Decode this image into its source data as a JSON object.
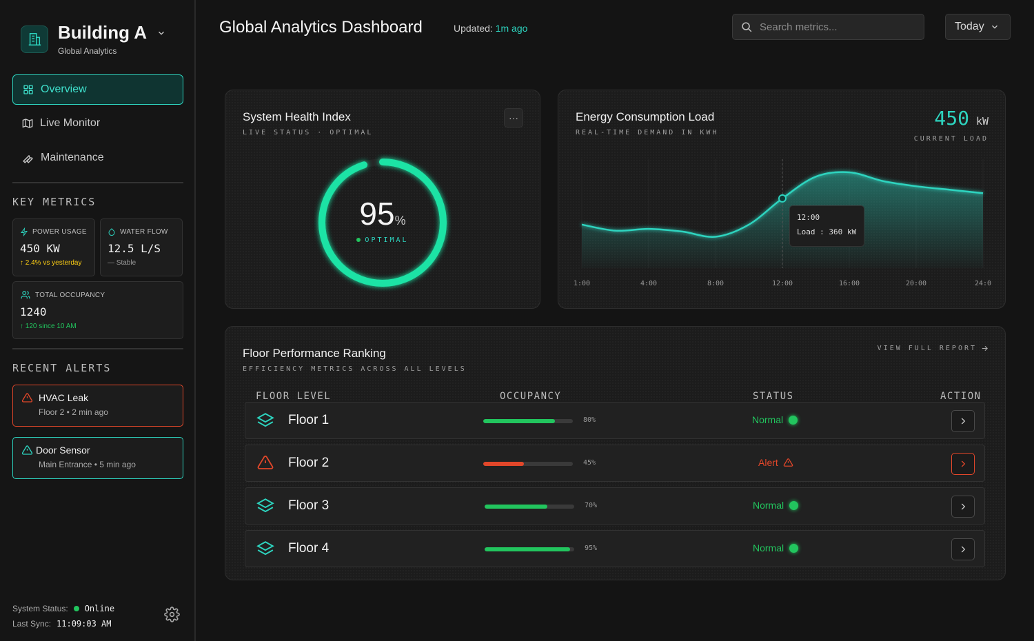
{
  "brand": {
    "title": "Building A",
    "subtitle": "Global Analytics"
  },
  "nav": {
    "items": [
      {
        "label": "Overview",
        "icon": "grid-icon",
        "active": true
      },
      {
        "label": "Live Monitor",
        "icon": "map-icon",
        "active": false
      },
      {
        "label": "Maintenance",
        "icon": "wrench-icon",
        "active": false
      }
    ]
  },
  "key_metrics": {
    "title": "KEY METRICS",
    "power": {
      "label": "POWER USAGE",
      "value": "450 KW",
      "delta": "↑ 2.4% vs yesterday"
    },
    "water": {
      "label": "WATER FLOW",
      "value": "12.5 L/S",
      "delta": "— Stable"
    },
    "occupancy": {
      "label": "TOTAL OCCUPANCY",
      "value": "1240",
      "delta": "↑ 120 since 10 AM"
    }
  },
  "recent_alerts": {
    "title": "RECENT ALERTS",
    "items": [
      {
        "title": "HVAC Leak",
        "sub": "Floor 2 • 2 min ago",
        "level": "critical"
      },
      {
        "title": "Door Sensor",
        "sub": "Main Entrance • 5 min ago",
        "level": "info"
      }
    ]
  },
  "system": {
    "status_label": "System Status:",
    "status_value": "Online",
    "sync_label": "Last Sync:",
    "sync_value": "11:09:03 AM"
  },
  "header": {
    "title": "Global Analytics Dashboard",
    "updated_label": "Updated:",
    "updated_value": "1m ago",
    "search_placeholder": "Search metrics...",
    "date_range": "Today"
  },
  "health": {
    "title": "System Health Index",
    "subtitle": "LIVE STATUS · OPTIMAL",
    "more": "···",
    "value": "95",
    "unit": "%",
    "status": "OPTIMAL",
    "percent": 95
  },
  "energy": {
    "title": "Energy Consumption Load",
    "subtitle": "REAL-TIME DEMAND IN KWH",
    "current_value": "450",
    "current_unit": "kW",
    "current_label": "CURRENT LOAD",
    "tooltip_time": "12:00",
    "tooltip_text": "Load : 360 kW"
  },
  "chart_data": {
    "type": "area",
    "x_ticks": [
      "1:00",
      "4:00",
      "8:00",
      "12:00",
      "16:00",
      "20:00",
      "24:0"
    ],
    "x": [
      0,
      2,
      4,
      6,
      8,
      10,
      12,
      14,
      16,
      18,
      20,
      22,
      24
    ],
    "values": [
      300,
      286,
      290,
      284,
      272,
      300,
      360,
      410,
      420,
      400,
      388,
      380,
      372
    ],
    "highlight": {
      "x": 12,
      "value": 360
    },
    "xlim": [
      0,
      24
    ],
    "ylim": [
      200,
      450
    ],
    "series_color": "#2dd4bf"
  },
  "floors": {
    "title": "Floor Performance Ranking",
    "subtitle": "EFFICIENCY METRICS ACROSS ALL LEVELS",
    "view_report": "VIEW FULL REPORT",
    "columns": [
      "FLOOR LEVEL",
      "OCCUPANCY",
      "STATUS",
      "ACTION"
    ],
    "rows": [
      {
        "name": "Floor 1",
        "occupancy": 0.8,
        "occupancy_label": "80%",
        "status": "Normal",
        "level": "normal"
      },
      {
        "name": "Floor 2",
        "occupancy": 0.45,
        "occupancy_label": "45%",
        "status": "Alert",
        "level": "alert"
      },
      {
        "name": "Floor 3",
        "occupancy": 0.7,
        "occupancy_label": "70%",
        "status": "Normal",
        "level": "normal"
      },
      {
        "name": "Floor 4",
        "occupancy": 0.95,
        "occupancy_label": "95%",
        "status": "Normal",
        "level": "normal"
      }
    ]
  },
  "colors": {
    "accent": "#2dd4bf",
    "success": "#22c55e",
    "alert": "#e2472a",
    "warning": "#facc15"
  }
}
